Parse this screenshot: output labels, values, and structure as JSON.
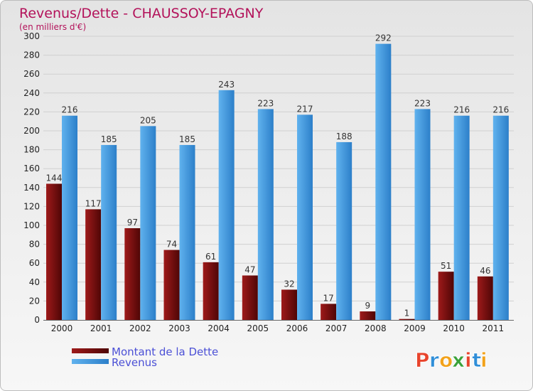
{
  "chart_data": {
    "type": "bar",
    "title": "Revenus/Dette - CHAUSSOY-EPAGNY",
    "subtitle": "(en milliers d'€)",
    "categories": [
      "2000",
      "2001",
      "2002",
      "2003",
      "2004",
      "2005",
      "2006",
      "2007",
      "2008",
      "2009",
      "2010",
      "2011"
    ],
    "series": [
      {
        "name": "Montant de la Dette",
        "color": "#7a1010",
        "values": [
          144,
          117,
          97,
          74,
          61,
          47,
          32,
          17,
          9,
          1,
          51,
          46
        ]
      },
      {
        "name": "Revenus",
        "color": "#3f9be0",
        "values": [
          216,
          185,
          205,
          185,
          243,
          223,
          217,
          188,
          292,
          223,
          216,
          216
        ]
      }
    ],
    "ylim": [
      0,
      300
    ],
    "yticks": [
      0,
      20,
      40,
      60,
      80,
      100,
      120,
      140,
      160,
      180,
      200,
      220,
      240,
      260,
      280,
      300
    ],
    "grid": true,
    "legend": "bottom-left"
  },
  "logo": {
    "letters": [
      "P",
      "r",
      "o",
      "x",
      "i",
      "t",
      "i"
    ],
    "colors": [
      "#e8442c",
      "#2f8ed8",
      "#f2a21b",
      "#3aa13a",
      "#e8442c",
      "#2f8ed8",
      "#f2a21b"
    ]
  }
}
